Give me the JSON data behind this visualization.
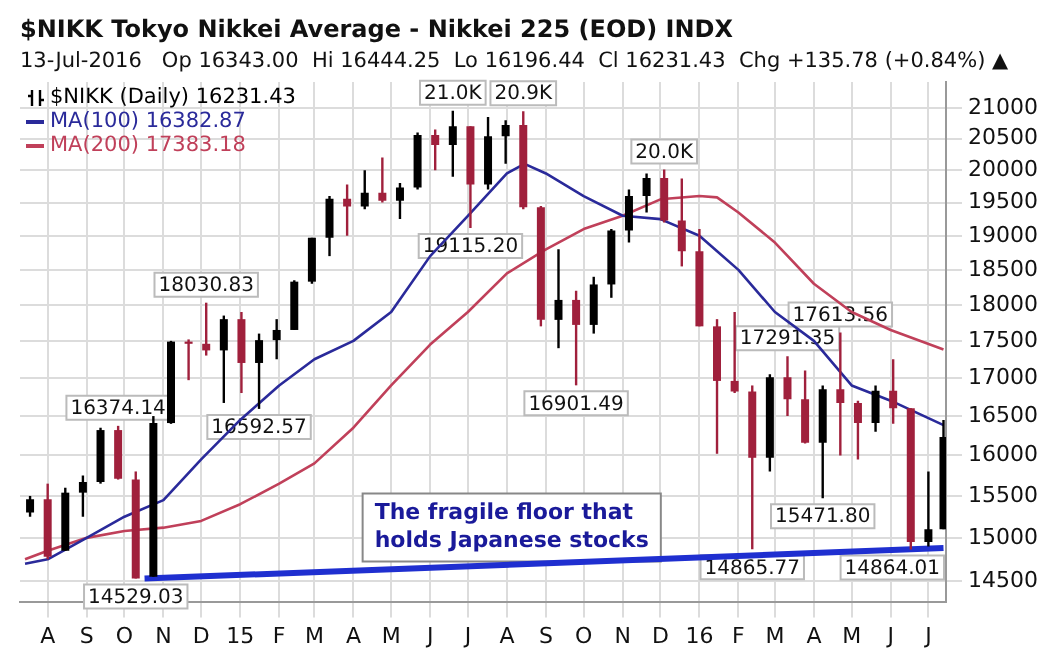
{
  "chart_data": {
    "type": "candlestick",
    "title": "$NIKK Tokyo Nikkei Average - Nikkei 225 (EOD) INDX",
    "subtitle": "13-Jul-2016   Op 16343.00  Hi 16444.25  Lo 16196.44  Cl 16231.43  Chg +135.78 (+0.84%) ▲",
    "series": [
      {
        "name": "$NIKK (Daily) 16231.43",
        "color": "#000000",
        "x": [
          "2014-07-18",
          "2014-08-01",
          "2014-08-15",
          "2014-08-29",
          "2014-09-12",
          "2014-09-26",
          "2014-10-10",
          "2014-10-24",
          "2014-11-07",
          "2014-11-21",
          "2014-12-05",
          "2014-12-19",
          "2015-01-02",
          "2015-01-16",
          "2015-01-30",
          "2015-02-13",
          "2015-02-27",
          "2015-03-13",
          "2015-03-27",
          "2015-04-10",
          "2015-04-24",
          "2015-05-08",
          "2015-05-22",
          "2015-06-05",
          "2015-06-19",
          "2015-07-03",
          "2015-07-17",
          "2015-07-31",
          "2015-08-14",
          "2015-08-28",
          "2015-09-11",
          "2015-09-25",
          "2015-10-09",
          "2015-10-23",
          "2015-11-06",
          "2015-11-20",
          "2015-12-04",
          "2015-12-18",
          "2016-01-01",
          "2016-01-15",
          "2016-01-29",
          "2016-02-12",
          "2016-02-26",
          "2016-03-11",
          "2016-03-25",
          "2016-04-08",
          "2016-04-22",
          "2016-05-06",
          "2016-05-20",
          "2016-06-03",
          "2016-06-17",
          "2016-07-01",
          "2016-07-13"
        ],
        "ohlc": [
          [
            15300,
            15500,
            15250,
            15460
          ],
          [
            15460,
            15650,
            14750,
            14780
          ],
          [
            14850,
            15600,
            14850,
            15540
          ],
          [
            15540,
            15750,
            15250,
            15670
          ],
          [
            15670,
            16350,
            15650,
            16320
          ],
          [
            16320,
            16374.14,
            15700,
            15710
          ],
          [
            15700,
            15800,
            14529.03,
            14530
          ],
          [
            14550,
            16500,
            14550,
            16410
          ],
          [
            16410,
            17500,
            16400,
            17490
          ],
          [
            17490,
            17520,
            16970,
            17460
          ],
          [
            17460,
            18030.83,
            17300,
            17370
          ],
          [
            17370,
            17850,
            16670,
            17800
          ],
          [
            17800,
            17900,
            16800,
            17200
          ],
          [
            17200,
            17600,
            16592.57,
            17510
          ],
          [
            17510,
            17800,
            17250,
            17650
          ],
          [
            17650,
            18350,
            17650,
            18330
          ],
          [
            18330,
            18970,
            18300,
            18970
          ],
          [
            18970,
            19600,
            18700,
            19560
          ],
          [
            19560,
            19780,
            19000,
            19440
          ],
          [
            19440,
            20000,
            19400,
            19650
          ],
          [
            19650,
            20200,
            19500,
            19530
          ],
          [
            19530,
            19800,
            19250,
            19730
          ],
          [
            19730,
            20600,
            19700,
            20560
          ],
          [
            20560,
            20650,
            20000,
            20400
          ],
          [
            20400,
            20952.71,
            19900,
            20700
          ],
          [
            20700,
            20700,
            19115.2,
            19780
          ],
          [
            19780,
            20850,
            19700,
            20540
          ],
          [
            20540,
            20800,
            20100,
            20720
          ],
          [
            20720,
            20946.93,
            19400,
            19430
          ],
          [
            19430,
            19450,
            17700,
            17790
          ],
          [
            17790,
            18800,
            17400,
            18070
          ],
          [
            18070,
            18200,
            16901.49,
            17720
          ],
          [
            17720,
            18400,
            17600,
            18290
          ],
          [
            18290,
            19100,
            18100,
            19080
          ],
          [
            19080,
            19700,
            18900,
            19600
          ],
          [
            19600,
            19950,
            19350,
            19880
          ],
          [
            19880,
            20012.4,
            19200,
            19230
          ],
          [
            19230,
            19870,
            18550,
            18770
          ],
          [
            18770,
            19100,
            17700,
            17700
          ],
          [
            17700,
            17800,
            16020,
            16960
          ],
          [
            16960,
            17900,
            16800,
            16820
          ],
          [
            16820,
            16900,
            14865.77,
            15970
          ],
          [
            15970,
            17050,
            15800,
            17010
          ],
          [
            17010,
            17291.35,
            16500,
            16720
          ],
          [
            16720,
            17100,
            16150,
            16160
          ],
          [
            16160,
            16900,
            15471.8,
            16850
          ],
          [
            16850,
            17613.56,
            16000,
            16670
          ],
          [
            16670,
            16700,
            15950,
            16410
          ],
          [
            16410,
            16900,
            16300,
            16830
          ],
          [
            16830,
            17250,
            16400,
            16600
          ],
          [
            16600,
            16600,
            14864.01,
            14950
          ],
          [
            14950,
            15800,
            14900,
            15100
          ],
          [
            15100,
            16450,
            15100,
            16231.43
          ]
        ],
        "colors": [
          "#000000",
          "#a0203c",
          "#000000",
          "#000000",
          "#000000",
          "#a0203c",
          "#a0203c",
          "#000000",
          "#000000",
          "#a0203c",
          "#a0203c",
          "#000000",
          "#a0203c",
          "#000000",
          "#000000",
          "#000000",
          "#000000",
          "#000000",
          "#a0203c",
          "#000000",
          "#a0203c",
          "#000000",
          "#000000",
          "#a0203c",
          "#000000",
          "#a0203c",
          "#000000",
          "#000000",
          "#a0203c",
          "#a0203c",
          "#000000",
          "#a0203c",
          "#000000",
          "#000000",
          "#000000",
          "#000000",
          "#a0203c",
          "#a0203c",
          "#a0203c",
          "#a0203c",
          "#a0203c",
          "#a0203c",
          "#000000",
          "#a0203c",
          "#a0203c",
          "#000000",
          "#a0203c",
          "#a0203c",
          "#000000",
          "#a0203c",
          "#a0203c",
          "#000000",
          "#000000"
        ]
      },
      {
        "name": "MA(100) 16382.87",
        "type": "line",
        "color": "#2a2a9a",
        "x": [
          "2014-07-14",
          "2014-08-01",
          "2014-09-01",
          "2014-10-01",
          "2014-11-01",
          "2014-12-01",
          "2015-01-01",
          "2015-02-01",
          "2015-03-01",
          "2015-04-01",
          "2015-05-01",
          "2015-06-01",
          "2015-07-01",
          "2015-08-01",
          "2015-08-15",
          "2015-09-01",
          "2015-10-01",
          "2015-11-01",
          "2015-12-01",
          "2016-01-01",
          "2016-02-01",
          "2016-03-01",
          "2016-04-01",
          "2016-05-01",
          "2016-06-01",
          "2016-07-13"
        ],
        "values": [
          14700,
          14750,
          15000,
          15250,
          15450,
          15950,
          16450,
          16900,
          17250,
          17500,
          17900,
          18700,
          19300,
          19950,
          20100,
          19950,
          19600,
          19300,
          19250,
          19000,
          18500,
          17900,
          17500,
          16900,
          16700,
          16382.87
        ]
      },
      {
        "name": "MA(200) 17383.18",
        "type": "line",
        "color": "#c0405a",
        "x": [
          "2014-07-14",
          "2014-08-01",
          "2014-09-01",
          "2014-10-01",
          "2014-11-01",
          "2014-12-01",
          "2015-01-01",
          "2015-02-01",
          "2015-03-01",
          "2015-04-01",
          "2015-05-01",
          "2015-06-01",
          "2015-07-01",
          "2015-08-01",
          "2015-09-01",
          "2015-10-01",
          "2015-11-01",
          "2015-12-01",
          "2016-01-01",
          "2016-01-15",
          "2016-02-01",
          "2016-03-01",
          "2016-04-01",
          "2016-05-01",
          "2016-06-01",
          "2016-07-13"
        ],
        "values": [
          14750,
          14850,
          15000,
          15080,
          15120,
          15200,
          15400,
          15650,
          15900,
          16350,
          16900,
          17450,
          17900,
          18450,
          18800,
          19100,
          19300,
          19550,
          19600,
          19580,
          19350,
          18900,
          18300,
          17900,
          17650,
          17383.18
        ]
      },
      {
        "type": "line",
        "color": "#1f2fd0",
        "x": [
          "2014-10-17",
          "2016-07-13"
        ],
        "values": [
          14529.03,
          14880
        ]
      }
    ],
    "xlim": [
      "2014-07-10",
      "2016-07-15"
    ],
    "xticks": [
      {
        "value": "2014-08-01",
        "label": "A"
      },
      {
        "value": "2014-09-01",
        "label": "S"
      },
      {
        "value": "2014-10-01",
        "label": "O"
      },
      {
        "value": "2014-11-01",
        "label": "N"
      },
      {
        "value": "2014-12-01",
        "label": "D"
      },
      {
        "value": "2015-01-01",
        "label": "15"
      },
      {
        "value": "2015-02-01",
        "label": "F"
      },
      {
        "value": "2015-03-01",
        "label": "M"
      },
      {
        "value": "2015-04-01",
        "label": "A"
      },
      {
        "value": "2015-05-01",
        "label": "M"
      },
      {
        "value": "2015-06-01",
        "label": "J"
      },
      {
        "value": "2015-07-01",
        "label": "J"
      },
      {
        "value": "2015-08-01",
        "label": "A"
      },
      {
        "value": "2015-09-01",
        "label": "S"
      },
      {
        "value": "2015-10-01",
        "label": "O"
      },
      {
        "value": "2015-11-01",
        "label": "N"
      },
      {
        "value": "2015-12-01",
        "label": "D"
      },
      {
        "value": "2016-01-01",
        "label": "16"
      },
      {
        "value": "2016-02-01",
        "label": "F"
      },
      {
        "value": "2016-03-01",
        "label": "M"
      },
      {
        "value": "2016-04-01",
        "label": "A"
      },
      {
        "value": "2016-05-01",
        "label": "M"
      },
      {
        "value": "2016-06-01",
        "label": "J"
      },
      {
        "value": "2016-07-01",
        "label": "J"
      }
    ],
    "ylim": [
      14270,
      21430
    ],
    "yticks": [
      14500,
      15000,
      15500,
      16000,
      16500,
      17000,
      17500,
      18000,
      18500,
      19000,
      19500,
      20000,
      20500,
      21000
    ],
    "log": true,
    "grid": true,
    "legend": "top left",
    "annotations": [
      {
        "text": "16374.14",
        "x": "2014-09-26",
        "y": 16374.14
      },
      {
        "text": "14529.03",
        "x": "2014-10-10",
        "y": 14529.03
      },
      {
        "text": "18030.83",
        "x": "2014-12-05",
        "y": 18030.83
      },
      {
        "text": "16592.57",
        "x": "2015-01-16",
        "y": 16592.57
      },
      {
        "text": "21.0K",
        "x": "2015-06-19",
        "y": 20952.71
      },
      {
        "text": "19115.20",
        "x": "2015-07-03",
        "y": 19115.2
      },
      {
        "text": "20.9K",
        "x": "2015-08-14",
        "y": 20946.93
      },
      {
        "text": "16901.49",
        "x": "2015-09-25",
        "y": 16901.49
      },
      {
        "text": "20.0K",
        "x": "2015-12-04",
        "y": 20012.4
      },
      {
        "text": "14865.77",
        "x": "2016-02-12",
        "y": 14865.77
      },
      {
        "text": "17291.35",
        "x": "2016-03-11",
        "y": 17291.35
      },
      {
        "text": "15471.80",
        "x": "2016-04-08",
        "y": 15471.8
      },
      {
        "text": "17613.56",
        "x": "2016-04-22",
        "y": 17613.56
      },
      {
        "text": "14864.01",
        "x": "2016-06-17",
        "y": 14864.01
      },
      "The fragile floor that holds Japanese stocks"
    ]
  }
}
